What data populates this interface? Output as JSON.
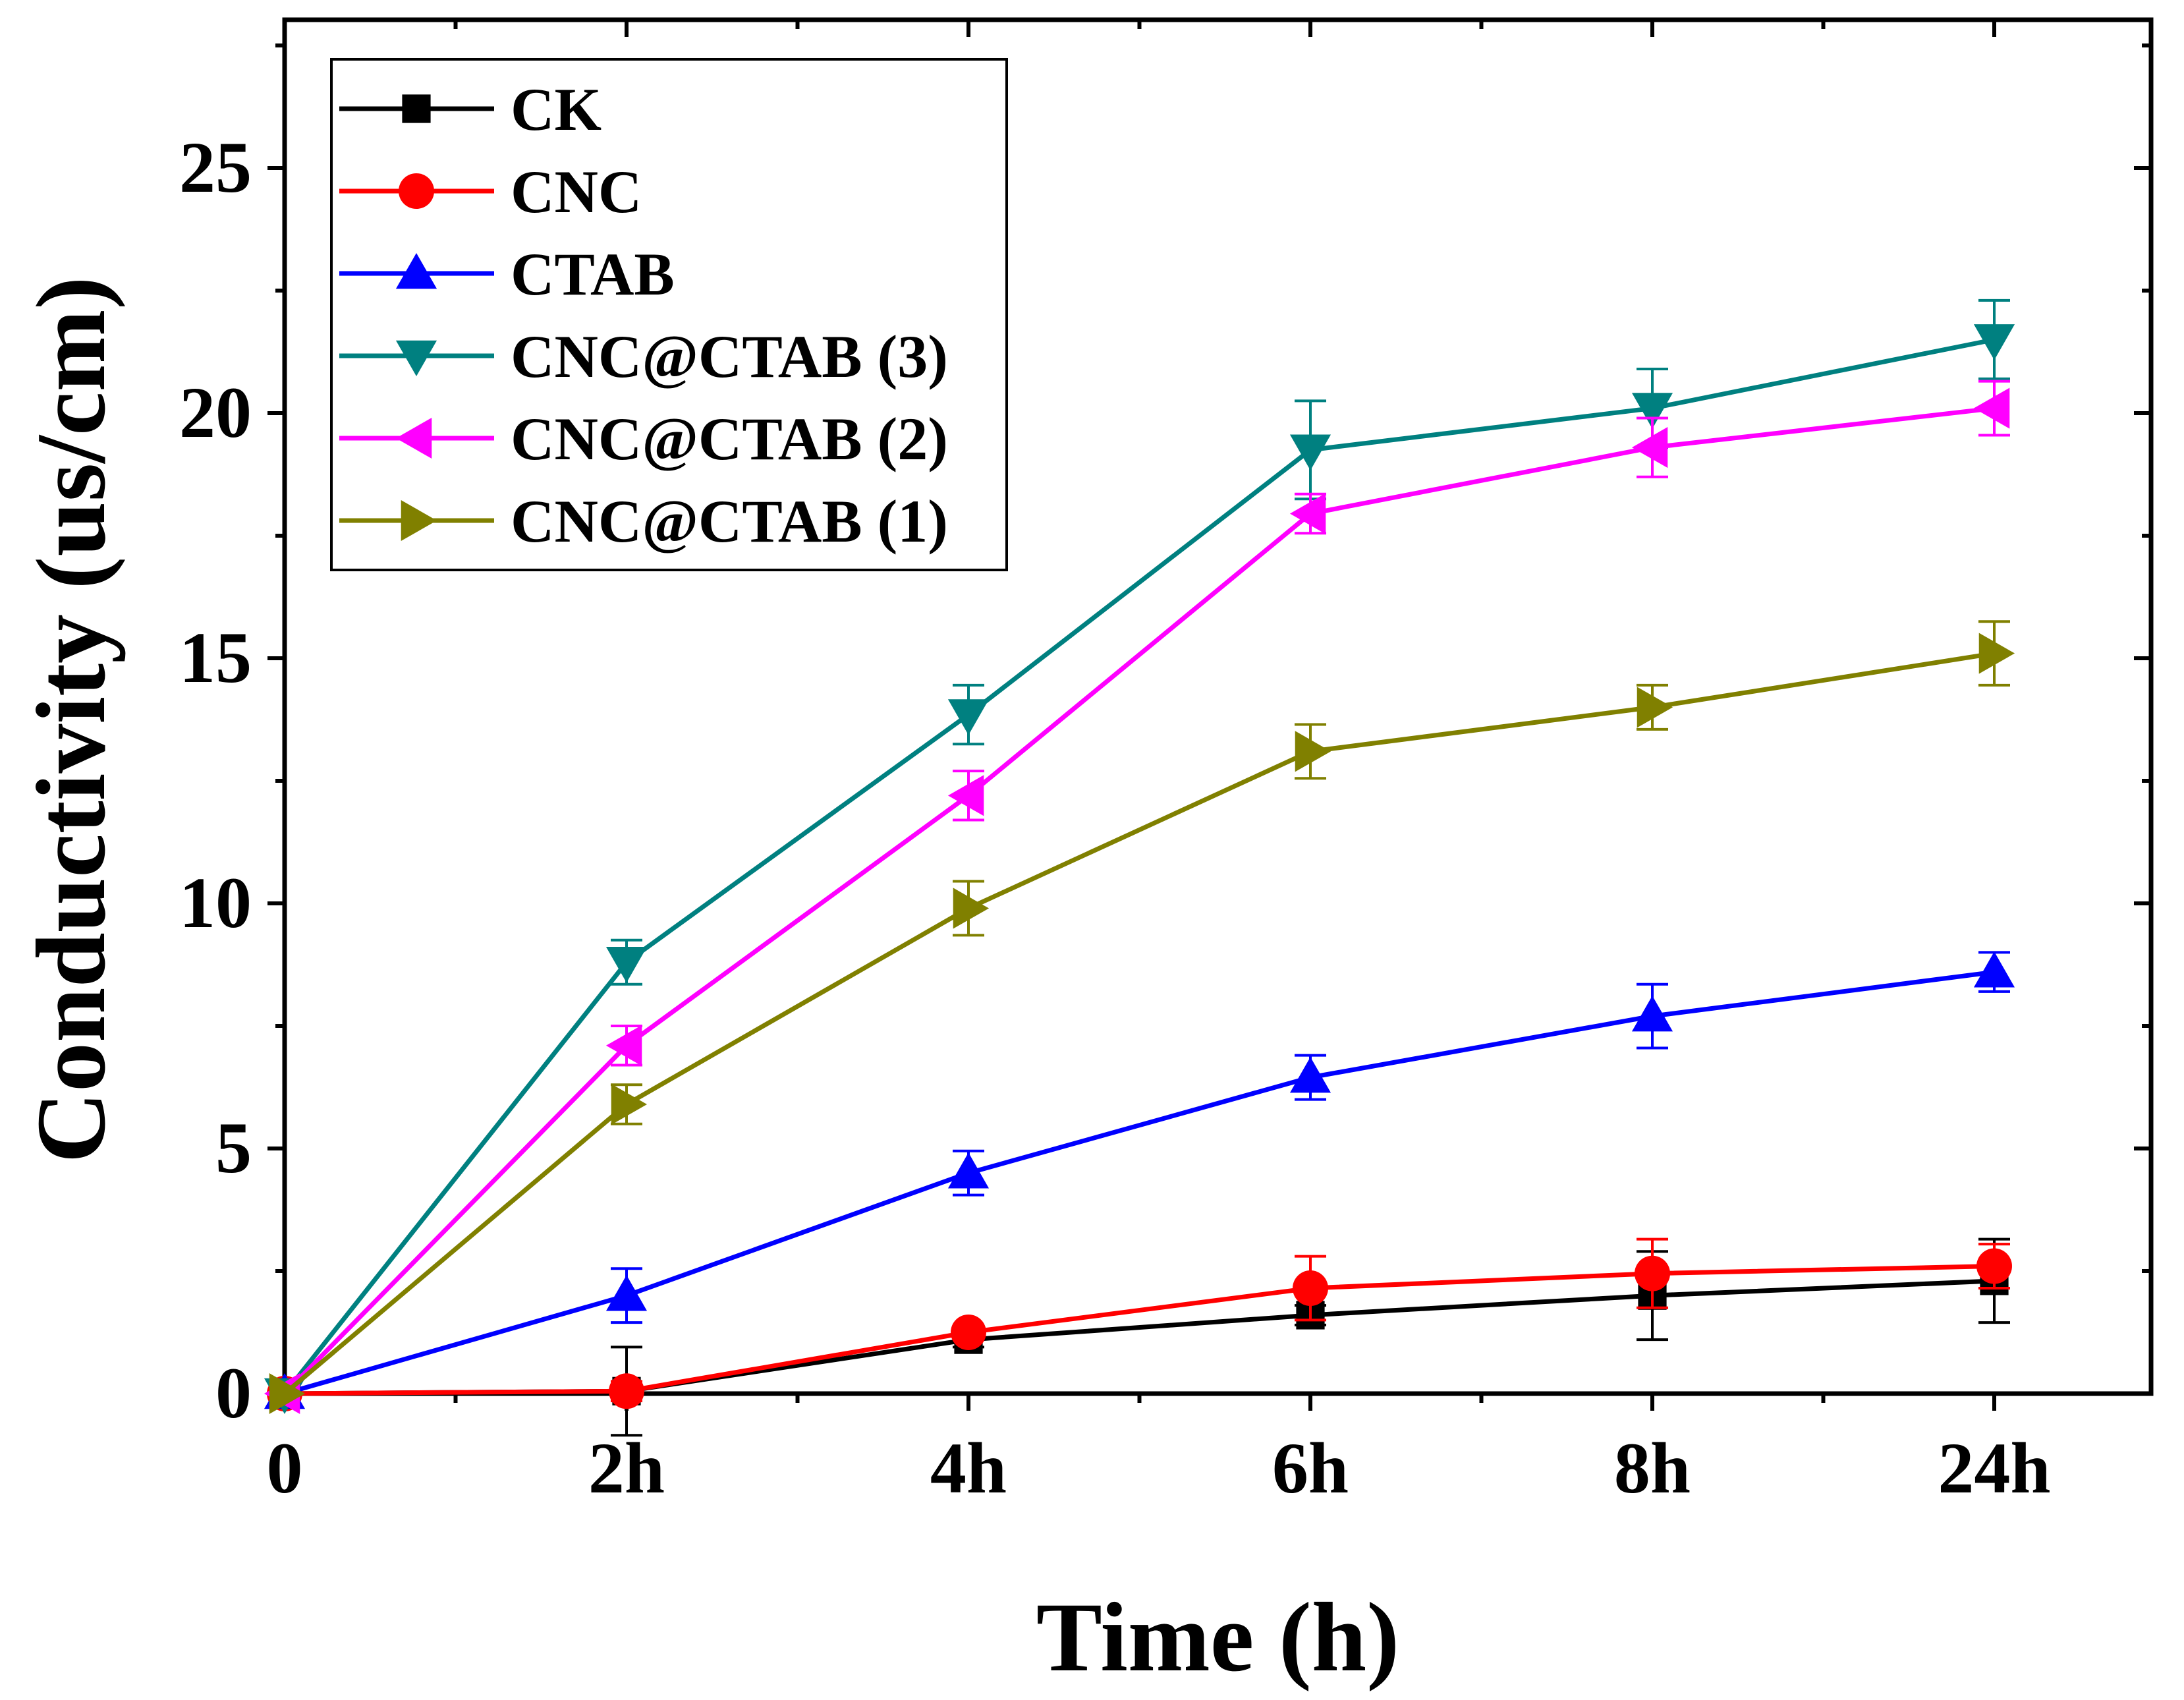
{
  "chart_data": {
    "type": "line",
    "title": "",
    "xlabel": "Time (h)",
    "ylabel": "Conductivity (us/cm)",
    "categories": [
      "0",
      "2h",
      "4h",
      "6h",
      "8h",
      "24h"
    ],
    "xlim": [
      0,
      5.5
    ],
    "ylim": [
      0,
      27.5
    ],
    "yticks": [
      0,
      5,
      10,
      15,
      20,
      25
    ],
    "ytick_labels": [
      "0",
      "5",
      "10",
      "15",
      "20",
      "25"
    ],
    "grid": false,
    "legend_position": "top-left",
    "series": [
      {
        "name": "CK",
        "color": "#000000",
        "marker": "square",
        "values": [
          0,
          0.05,
          1.1,
          1.6,
          2.0,
          2.3
        ],
        "errors": [
          0,
          0.9,
          0.15,
          0.2,
          0.9,
          0.85
        ]
      },
      {
        "name": "CNC",
        "color": "#ff0000",
        "marker": "circle",
        "values": [
          0,
          0.05,
          1.25,
          2.15,
          2.45,
          2.6
        ],
        "errors": [
          0,
          0.2,
          0.15,
          0.65,
          0.7,
          0.45
        ]
      },
      {
        "name": "CTAB",
        "color": "#0000ff",
        "marker": "triangle-up",
        "values": [
          0,
          2.0,
          4.5,
          6.45,
          7.7,
          8.6
        ],
        "errors": [
          0,
          0.55,
          0.45,
          0.45,
          0.65,
          0.4
        ]
      },
      {
        "name": "CNC@CTAB (3)",
        "color": "#008080",
        "marker": "triangle-down",
        "values": [
          0,
          8.8,
          13.85,
          19.25,
          20.1,
          21.5
        ],
        "errors": [
          0,
          0.45,
          0.6,
          1.0,
          0.8,
          0.8
        ]
      },
      {
        "name": "CNC@CTAB (2)",
        "color": "#ff00ff",
        "marker": "triangle-left",
        "values": [
          0,
          7.1,
          12.2,
          17.95,
          19.3,
          20.1
        ],
        "errors": [
          0,
          0.4,
          0.5,
          0.4,
          0.6,
          0.55
        ]
      },
      {
        "name": "CNC@CTAB (1)",
        "color": "#808000",
        "marker": "triangle-right",
        "values": [
          0,
          5.9,
          9.9,
          13.1,
          14.0,
          15.1
        ],
        "errors": [
          0,
          0.4,
          0.55,
          0.55,
          0.45,
          0.65
        ]
      }
    ]
  }
}
